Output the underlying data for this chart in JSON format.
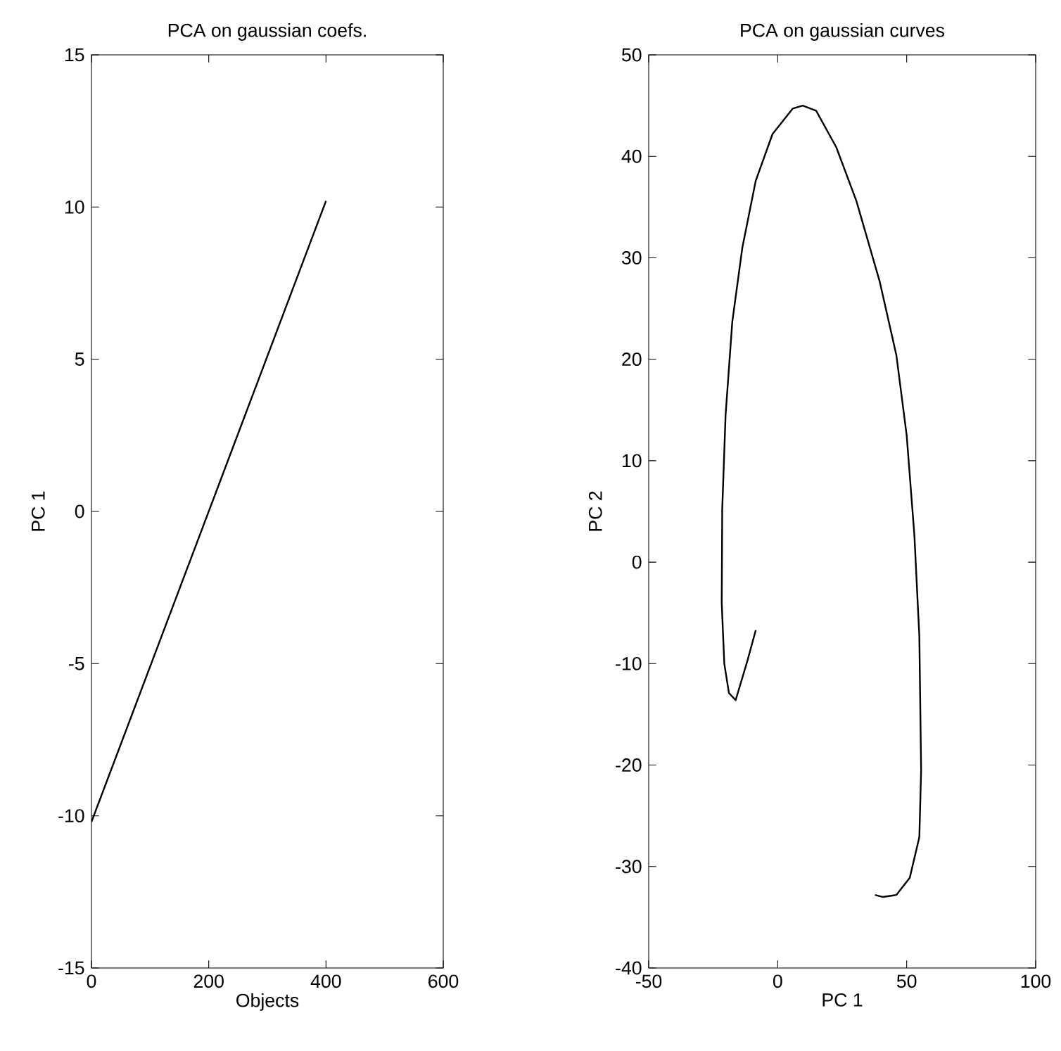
{
  "chart_data": [
    {
      "type": "line",
      "title": "PCA on gaussian coefs.",
      "xlabel": "Objects",
      "ylabel": "PC 1",
      "x": [
        0,
        400
      ],
      "values": [
        -10.2,
        10.2
      ],
      "color": "#000000",
      "xlim": [
        0,
        600
      ],
      "xticks": [
        0,
        200,
        400,
        600
      ],
      "ylim": [
        -15,
        15
      ],
      "yticks": [
        -15,
        -10,
        -5,
        0,
        5,
        10,
        15
      ],
      "grid": false,
      "marker": "none",
      "line_style": "solid"
    },
    {
      "type": "line",
      "title": "PCA on gaussian curves",
      "xlabel": "PC 1",
      "ylabel": "PC 2",
      "x": [
        -8.5,
        -11.6,
        -16.3,
        -18.9,
        -20.7,
        -21.7,
        -21.5,
        -20.2,
        -17.6,
        -13.7,
        -8.5,
        -2,
        5.8,
        9.7,
        14.9,
        22.7,
        30.5,
        39.5,
        46,
        50,
        53,
        54.9,
        55.6,
        54.9,
        51.2,
        46,
        40.8,
        37.7
      ],
      "values": [
        -6.7,
        -9.6,
        -13.6,
        -12.9,
        -10,
        -4,
        5.2,
        14.5,
        23.7,
        31,
        37.6,
        42.2,
        44.7,
        45,
        44.5,
        40.9,
        35.6,
        27.7,
        20.4,
        12.5,
        2.6,
        -7.3,
        -20.5,
        -27.1,
        -31.1,
        -32.8,
        -33,
        -32.8
      ],
      "color": "#000000",
      "xlim": [
        -50,
        100
      ],
      "xticks": [
        -50,
        0,
        50,
        100
      ],
      "ylim": [
        -40,
        50
      ],
      "yticks": [
        -40,
        -30,
        -20,
        -10,
        0,
        10,
        20,
        30,
        40,
        50
      ],
      "grid": false,
      "marker": "none",
      "line_style": "solid"
    }
  ]
}
